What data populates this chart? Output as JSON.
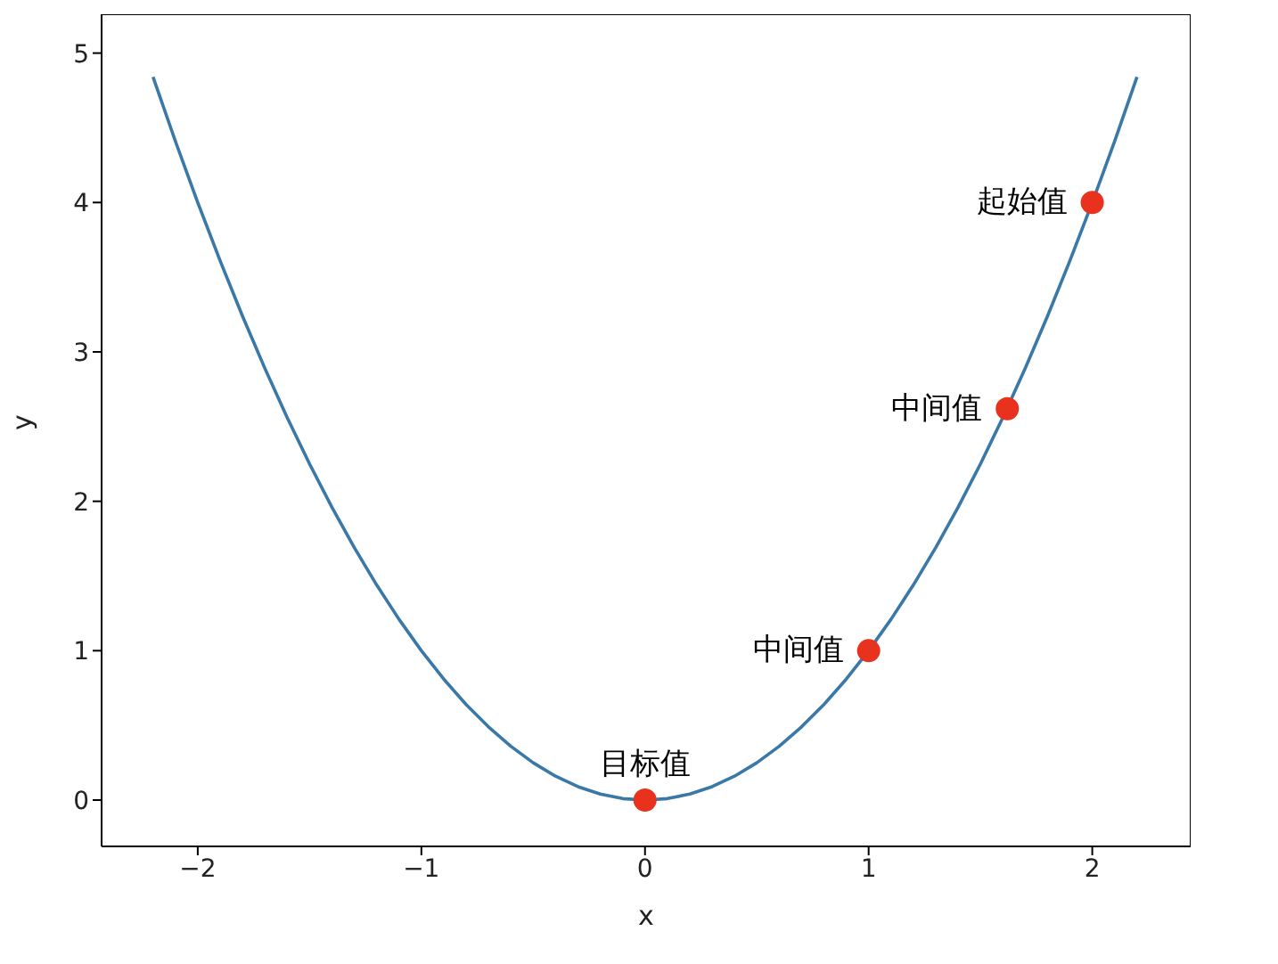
{
  "chart_data": {
    "type": "line",
    "xlabel": "x",
    "ylabel": "y",
    "xlim": [
      -2.43,
      2.44
    ],
    "ylim": [
      -0.31,
      5.26
    ],
    "xticks": [
      -2,
      -1,
      0,
      1,
      2
    ],
    "yticks": [
      0,
      1,
      2,
      3,
      4,
      5
    ],
    "series": [
      {
        "color": "#3a78a8",
        "marker": "none",
        "line_style": "solid",
        "x": [
          -2.2,
          -2.1,
          -2.0,
          -1.9,
          -1.8,
          -1.7,
          -1.6,
          -1.5,
          -1.4,
          -1.3,
          -1.2,
          -1.1,
          -1.0,
          -0.9,
          -0.8,
          -0.7,
          -0.6,
          -0.5,
          -0.4,
          -0.3,
          -0.2,
          -0.1,
          0,
          0.1,
          0.2,
          0.3,
          0.4,
          0.5,
          0.6,
          0.7,
          0.8,
          0.9,
          1.0,
          1.1,
          1.2,
          1.3,
          1.4,
          1.5,
          1.6,
          1.7,
          1.8,
          1.9,
          2.0,
          2.1,
          2.2
        ],
        "values": [
          4.84,
          4.41,
          4.0,
          3.61,
          3.24,
          2.89,
          2.56,
          2.25,
          1.96,
          1.69,
          1.44,
          1.21,
          1.0,
          0.81,
          0.64,
          0.49,
          0.36,
          0.25,
          0.16,
          0.09,
          0.04,
          0.01,
          0,
          0.01,
          0.04,
          0.09,
          0.16,
          0.25,
          0.36,
          0.49,
          0.64,
          0.81,
          1.0,
          1.21,
          1.44,
          1.69,
          1.96,
          2.25,
          2.56,
          2.89,
          3.24,
          3.61,
          4.0,
          4.41,
          4.84
        ]
      },
      {
        "type": "scatter",
        "color": "#e8321e",
        "marker": "circle",
        "x": [
          0,
          1,
          1.62,
          2
        ],
        "values": [
          0,
          1,
          2.62,
          4
        ]
      }
    ],
    "annotations": [
      {
        "text": "起始值",
        "x": 2,
        "y": 4
      },
      {
        "text": "中间值",
        "x": 1.62,
        "y": 2.62
      },
      {
        "text": "中间值",
        "x": 1,
        "y": 1
      },
      {
        "text": "目标值",
        "x": 0,
        "y": 0
      }
    ]
  }
}
